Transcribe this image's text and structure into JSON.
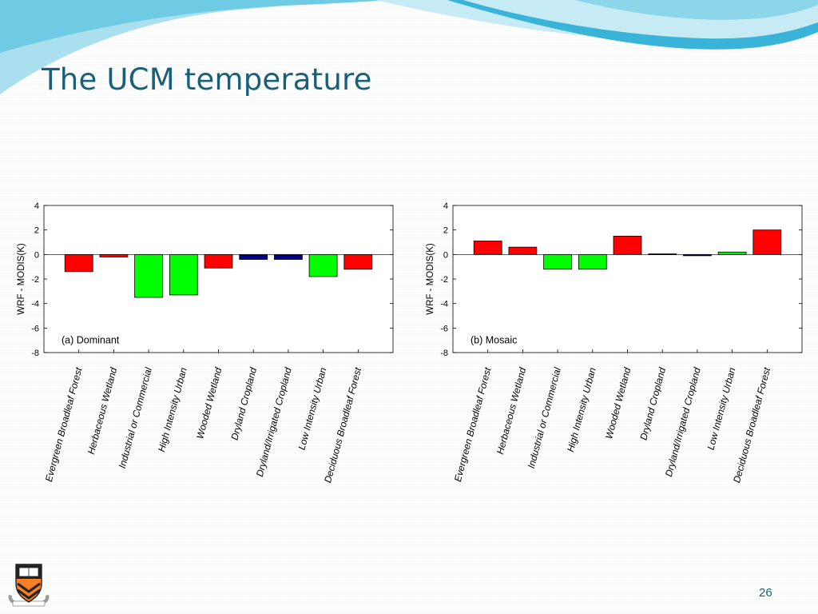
{
  "slide": {
    "title": "The UCM temperature",
    "page_number": "26",
    "colors": {
      "title": "#17607a",
      "accent": "#2fb7d6"
    },
    "logo_icon": "princeton-shield-icon"
  },
  "chart_data": [
    {
      "type": "bar",
      "panel_label": "(a) Dominant",
      "ylabel": "WRF - MODIS(K)",
      "xlabel": "",
      "title": "",
      "ylim": [
        -8,
        4
      ],
      "yticks": [
        4,
        2,
        0,
        -2,
        -4,
        -6,
        -8
      ],
      "grid": false,
      "categories": [
        "Evergreen Broadleaf Forest",
        "Herbaceous Wetland",
        "Industrial or Commercial",
        "High Intensity Urban",
        "Wooded Wetland",
        "Dryland Cropland",
        "Dryland/Irrigated Cropland",
        "Low Intensity Urban",
        "Deciduous Broadleaf Forest"
      ],
      "values": [
        -1.4,
        -0.2,
        -3.5,
        -3.3,
        -1.1,
        -0.4,
        -0.4,
        -1.8,
        -1.2
      ],
      "bar_colors": [
        "#ff0000",
        "#ff0000",
        "#00ff00",
        "#00ff00",
        "#ff0000",
        "#00008b",
        "#00008b",
        "#00ff00",
        "#ff0000"
      ]
    },
    {
      "type": "bar",
      "panel_label": "(b) Mosaic",
      "ylabel": "WRF - MODIS(K)",
      "xlabel": "",
      "title": "",
      "ylim": [
        -8,
        4
      ],
      "yticks": [
        4,
        2,
        0,
        -2,
        -4,
        -6,
        -8
      ],
      "grid": false,
      "categories": [
        "Evergreen Broadleaf Forest",
        "Herbaceous Wetland",
        "Industrial or Commercial",
        "High Intensity Urban",
        "Wooded Wetland",
        "Dryland Cropland",
        "Dryland/Irrigated Cropland",
        "Low Intensity Urban",
        "Deciduous Broadleaf Forest"
      ],
      "values": [
        1.1,
        0.6,
        -1.2,
        -1.2,
        1.5,
        0.05,
        -0.1,
        0.2,
        2.0
      ],
      "bar_colors": [
        "#ff0000",
        "#ff0000",
        "#00ff00",
        "#00ff00",
        "#ff0000",
        "#00008b",
        "#00008b",
        "#00ff00",
        "#ff0000"
      ]
    }
  ]
}
